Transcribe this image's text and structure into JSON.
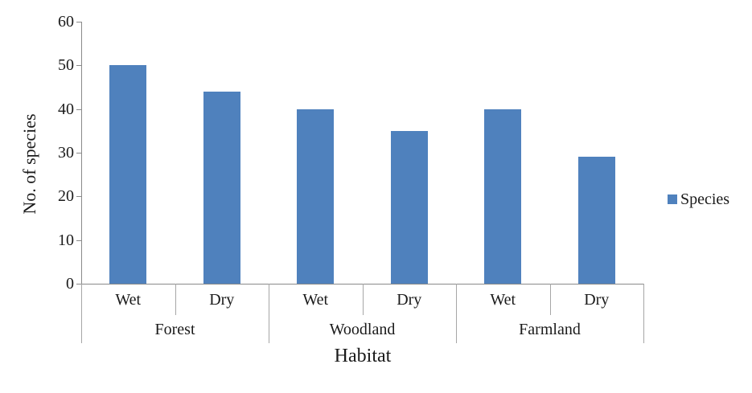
{
  "chart_data": {
    "type": "bar",
    "title": "",
    "xlabel": "Habitat",
    "ylabel": "No. of species",
    "groups": [
      "Forest",
      "Woodland",
      "Farmland"
    ],
    "subcategories": [
      "Wet",
      "Dry",
      "Wet",
      "Dry",
      "Wet",
      "Dry"
    ],
    "series": [
      {
        "name": "Species",
        "values": [
          50,
          44,
          40,
          35,
          40,
          29
        ],
        "color": "#4F81BD"
      }
    ],
    "ylim": [
      0,
      60
    ],
    "yticks": [
      0,
      10,
      20,
      30,
      40,
      50,
      60
    ],
    "grid": false,
    "legend_position": "right"
  },
  "legend": {
    "label": "Species",
    "swatch_color": "#4F81BD"
  },
  "colors": {
    "bar": "#4F81BD",
    "axis_line": "#8a8a8a",
    "divider_line": "#a6a6a6",
    "text": "#1a1a1a",
    "background": "#ffffff"
  }
}
